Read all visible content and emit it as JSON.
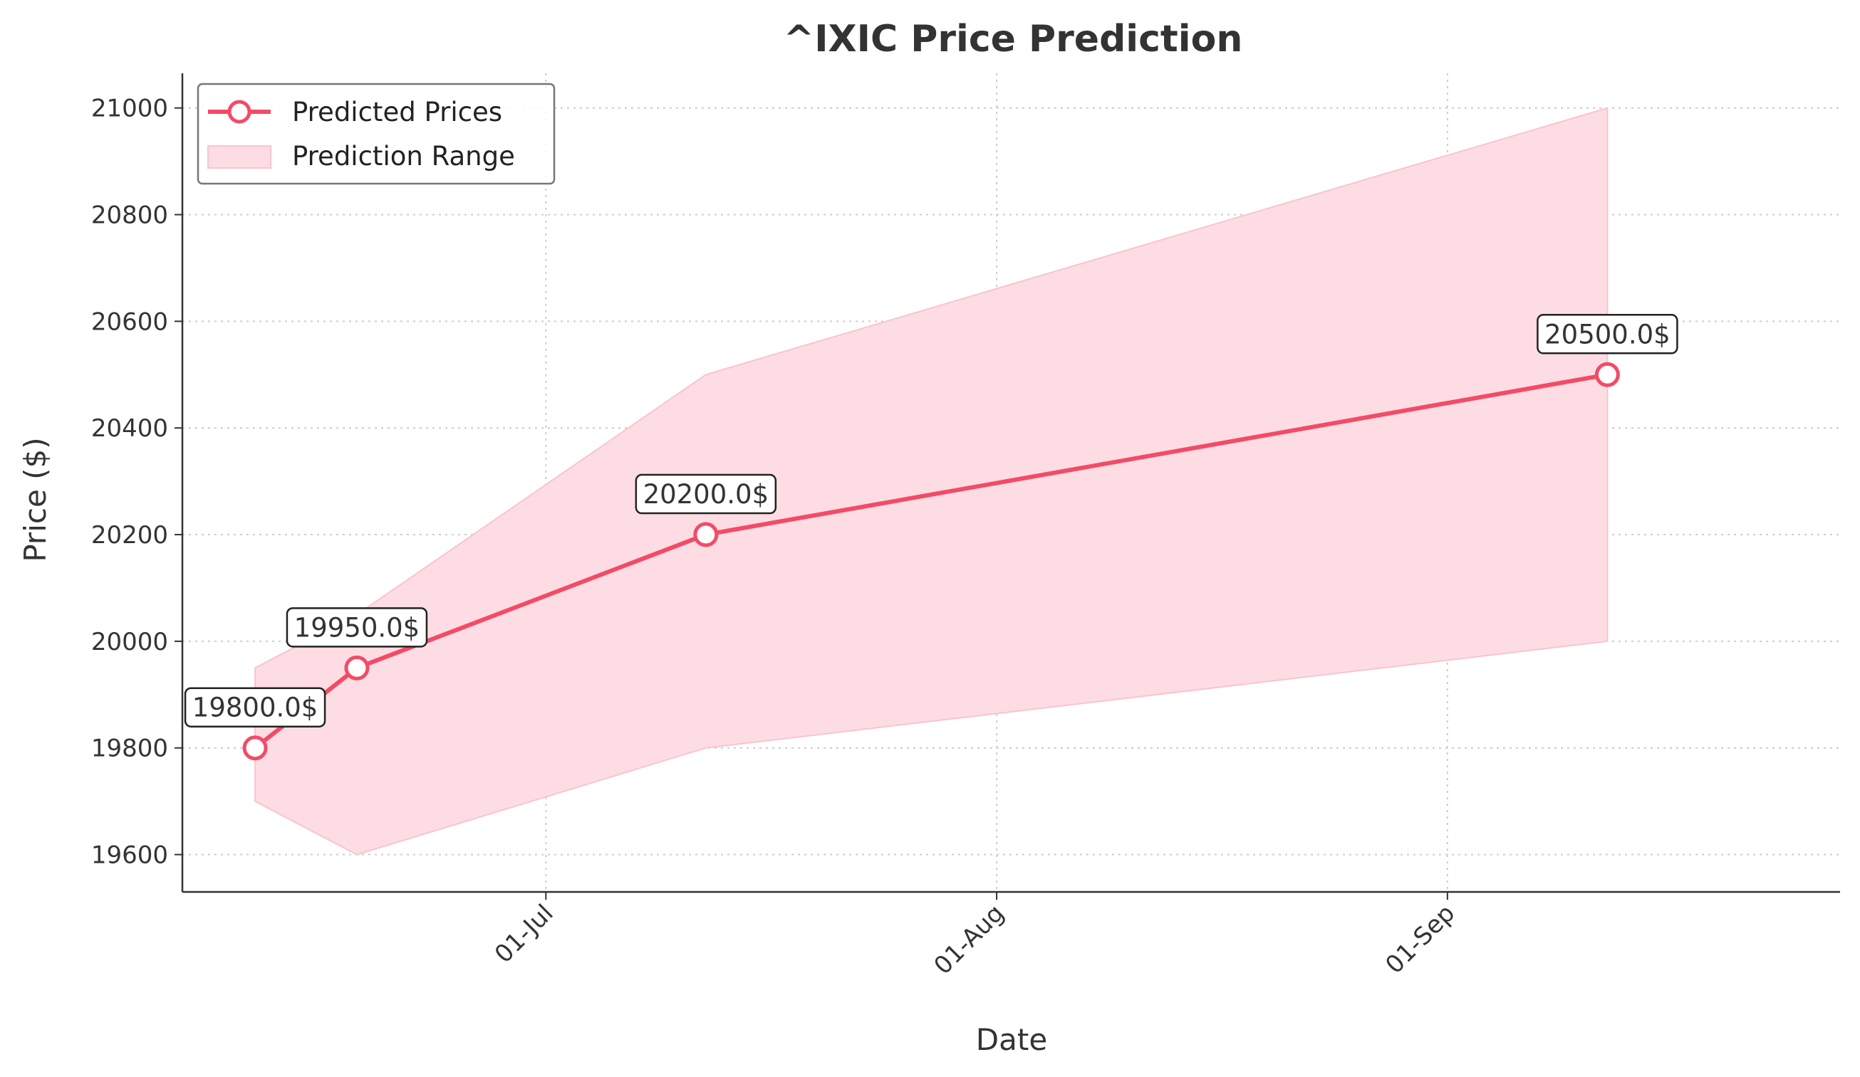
{
  "chart_data": {
    "type": "line",
    "title": "^IXIC Price Prediction",
    "xlabel": "Date",
    "ylabel": "Price ($)",
    "x_ticks": [
      {
        "date": "2024-07-01",
        "label": "01-Jul"
      },
      {
        "date": "2024-08-01",
        "label": "01-Aug"
      },
      {
        "date": "2024-09-01",
        "label": "01-Sep"
      }
    ],
    "y_ticks": [
      19600,
      19800,
      20000,
      20200,
      20400,
      20600,
      20800,
      21000
    ],
    "xlim": [
      "2024-06-06",
      "2024-09-28"
    ],
    "ylim": [
      19530,
      21065
    ],
    "grid": true,
    "legend_position": "top-left",
    "series": [
      {
        "name": "Predicted Prices",
        "kind": "line",
        "color": "#f34b67",
        "points": [
          {
            "date": "2024-06-11",
            "value": 19800,
            "label": "19800.0$"
          },
          {
            "date": "2024-06-18",
            "value": 19950,
            "label": "19950.0$"
          },
          {
            "date": "2024-07-12",
            "value": 20200,
            "label": "20200.0$"
          },
          {
            "date": "2024-09-12",
            "value": 20500,
            "label": "20500.0$"
          }
        ]
      },
      {
        "name": "Prediction Range",
        "kind": "range",
        "color": "#fddde3",
        "points": [
          {
            "date": "2024-06-11",
            "low": 19700,
            "high": 19950
          },
          {
            "date": "2024-06-18",
            "low": 19600,
            "high": 20050
          },
          {
            "date": "2024-07-12",
            "low": 19800,
            "high": 20500
          },
          {
            "date": "2024-09-12",
            "low": 20000,
            "high": 21000
          }
        ]
      }
    ]
  }
}
